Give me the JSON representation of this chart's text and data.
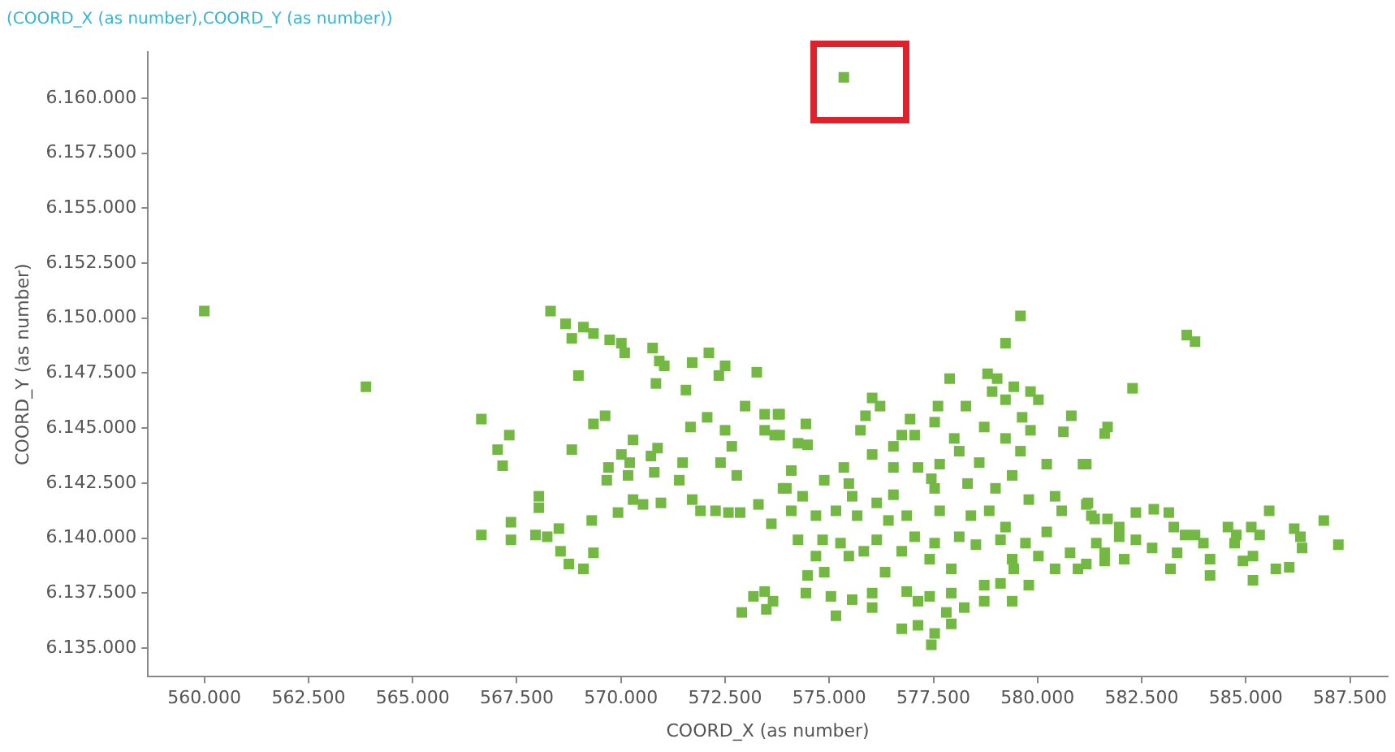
{
  "chart_data": {
    "type": "scatter",
    "title": "(COORD_X (as number),COORD_Y (as number))",
    "xlabel": "COORD_X (as number)",
    "ylabel": "COORD_Y (as number)",
    "marker": "square",
    "grid": false,
    "legend": false,
    "xlim": [
      558650,
      588400
    ],
    "ylim": [
      6133700,
      6162100
    ],
    "xticks": [
      {
        "value": 560000,
        "label": "560.000"
      },
      {
        "value": 562500,
        "label": "562.500"
      },
      {
        "value": 565000,
        "label": "565.000"
      },
      {
        "value": 567500,
        "label": "567.500"
      },
      {
        "value": 570000,
        "label": "570.000"
      },
      {
        "value": 572500,
        "label": "572.500"
      },
      {
        "value": 575000,
        "label": "575.000"
      },
      {
        "value": 577500,
        "label": "577.500"
      },
      {
        "value": 580000,
        "label": "580.000"
      },
      {
        "value": 582500,
        "label": "582.500"
      },
      {
        "value": 585000,
        "label": "585.000"
      },
      {
        "value": 587500,
        "label": "587.500"
      }
    ],
    "yticks": [
      {
        "value": 6135000,
        "label": "6.135.000"
      },
      {
        "value": 6137500,
        "label": "6.137.500"
      },
      {
        "value": 6140000,
        "label": "6.140.000"
      },
      {
        "value": 6142500,
        "label": "6.142.500"
      },
      {
        "value": 6145000,
        "label": "6.145.000"
      },
      {
        "value": 6147500,
        "label": "6.147.500"
      },
      {
        "value": 6150000,
        "label": "6.150.000"
      },
      {
        "value": 6152500,
        "label": "6.152.500"
      },
      {
        "value": 6155000,
        "label": "6.155.000"
      },
      {
        "value": 6157500,
        "label": "6.157.500"
      },
      {
        "value": 6160000,
        "label": "6.160.000"
      }
    ],
    "series": [
      {
        "color": "#72b843",
        "x": [
          575350,
          560000,
          563880,
          568310,
          568670,
          568820,
          569100,
          569340,
          569730,
          570010,
          570090,
          570760,
          570920,
          571040,
          571710,
          572110,
          572500,
          572350,
          573260,
          568980,
          570840,
          571560,
          566650,
          567320,
          567040,
          567160,
          569340,
          569620,
          568820,
          570290,
          570010,
          570210,
          569700,
          569660,
          570170,
          570720,
          570880,
          570800,
          571480,
          571400,
          571670,
          572070,
          572500,
          572660,
          572390,
          572780,
          572980,
          573450,
          573450,
          573690,
          573770,
          568030,
          568030,
          567360,
          566650,
          567360,
          567950,
          568230,
          568510,
          568550,
          568750,
          569100,
          569300,
          569340,
          569930,
          570290,
          570530,
          570960,
          571710,
          571910,
          572270,
          572580,
          572860,
          573300,
          573610,
          573890,
          572900,
          573180,
          573450,
          573490,
          579590,
          579230,
          577890,
          578800,
          579030,
          578910,
          579430,
          579830,
          580020,
          579230,
          576030,
          576220,
          577610,
          578280,
          573810,
          574440,
          575870,
          576940,
          577530,
          575750,
          576740,
          577050,
          578720,
          579630,
          579830,
          580810,
          580620,
          573810,
          574250,
          574480,
          576030,
          576540,
          578000,
          578120,
          579230,
          579590,
          580220,
          581090,
          574090,
          574880,
          575350,
          576540,
          577130,
          577650,
          578600,
          577450,
          579390,
          573970,
          574360,
          575470,
          575550,
          576140,
          576540,
          577530,
          578320,
          578990,
          579790,
          580420,
          581170,
          574090,
          574680,
          575160,
          575670,
          576420,
          576860,
          577650,
          578400,
          578840,
          579230,
          580580,
          581290,
          574250,
          574840,
          575270,
          576140,
          577050,
          577530,
          578120,
          578520,
          579110,
          579710,
          580220,
          574680,
          575470,
          575830,
          576740,
          577410,
          579390,
          580020,
          580780,
          574480,
          574880,
          576340,
          577930,
          579430,
          580420,
          580970,
          574440,
          575040,
          575550,
          576030,
          576860,
          577410,
          577930,
          578720,
          579110,
          579790,
          575160,
          576030,
          577130,
          577810,
          578240,
          578720,
          579390,
          576740,
          577130,
          577530,
          577450,
          577930,
          573650,
          583580,
          583780,
          582280,
          581680,
          581610,
          581170,
          581210,
          581370,
          581680,
          581960,
          582360,
          582790,
          583150,
          583270,
          583540,
          583780,
          583980,
          584570,
          584770,
          585130,
          585330,
          585560,
          586160,
          586310,
          586870,
          587220,
          581410,
          581960,
          582360,
          582750,
          581610,
          582080,
          583350,
          584140,
          584730,
          584930,
          585170,
          586350,
          586040,
          585720,
          581610,
          583190,
          584140,
          585170,
          581170
        ],
        "values": [
          6160950,
          6150320,
          6146880,
          6150320,
          6149740,
          6149080,
          6149590,
          6149300,
          6149010,
          6148860,
          6148420,
          6148640,
          6148050,
          6147830,
          6147980,
          6148420,
          6147830,
          6147390,
          6147540,
          6147390,
          6147030,
          6146730,
          6145410,
          6144680,
          6144020,
          6143290,
          6145190,
          6145560,
          6144020,
          6144460,
          6143800,
          6143430,
          6143210,
          6142630,
          6142850,
          6143730,
          6144090,
          6142990,
          6143430,
          6142630,
          6145050,
          6145490,
          6144900,
          6144170,
          6143430,
          6142850,
          6146000,
          6145630,
          6144900,
          6144680,
          6145630,
          6141900,
          6141380,
          6140720,
          6140140,
          6139920,
          6140140,
          6140060,
          6140430,
          6139400,
          6138820,
          6138600,
          6140800,
          6139330,
          6141160,
          6141750,
          6141530,
          6141600,
          6141750,
          6141240,
          6141240,
          6141160,
          6141160,
          6141530,
          6140650,
          6142260,
          6136620,
          6137350,
          6137570,
          6136760,
          6150100,
          6148860,
          6147250,
          6147470,
          6147250,
          6146660,
          6146880,
          6146660,
          6146290,
          6146290,
          6146370,
          6146000,
          6146000,
          6146000,
          6145630,
          6145190,
          6145560,
          6145410,
          6145270,
          6144900,
          6144680,
          6144680,
          6145050,
          6145490,
          6144900,
          6145560,
          6144830,
          6144680,
          6144310,
          6144240,
          6143800,
          6144170,
          6144530,
          6143950,
          6144530,
          6143950,
          6143360,
          6143360,
          6143070,
          6142630,
          6143210,
          6143210,
          6143210,
          6143360,
          6143430,
          6142700,
          6142850,
          6142260,
          6141900,
          6142480,
          6141900,
          6141600,
          6141970,
          6142260,
          6142480,
          6142260,
          6141750,
          6141900,
          6141530,
          6141240,
          6141020,
          6141240,
          6141020,
          6140800,
          6141020,
          6141240,
          6141020,
          6141240,
          6140500,
          6141240,
          6141020,
          6139920,
          6139920,
          6139770,
          6139920,
          6140060,
          6139770,
          6140060,
          6139700,
          6139920,
          6139770,
          6140280,
          6139180,
          6139180,
          6139400,
          6139400,
          6139040,
          6139040,
          6139180,
          6139330,
          6138300,
          6138450,
          6138450,
          6138600,
          6138600,
          6138600,
          6138600,
          6137500,
          6137350,
          6137200,
          6137500,
          6137570,
          6137350,
          6137500,
          6137860,
          6137940,
          6137860,
          6136470,
          6136840,
          6137130,
          6136620,
          6136840,
          6137130,
          6137130,
          6135880,
          6136030,
          6135660,
          6135150,
          6136100,
          6137130,
          6149230,
          6148930,
          6146810,
          6145050,
          6144750,
          6143360,
          6141600,
          6140870,
          6140870,
          6140500,
          6141160,
          6141310,
          6141160,
          6140500,
          6140140,
          6140140,
          6139770,
          6140500,
          6140140,
          6140500,
          6140140,
          6141240,
          6140430,
          6140060,
          6140800,
          6139700,
          6139770,
          6140060,
          6139920,
          6139550,
          6139330,
          6139040,
          6139330,
          6139040,
          6139770,
          6138960,
          6139180,
          6139550,
          6138670,
          6138600,
          6138960,
          6138600,
          6138300,
          6138080,
          6138820
        ]
      }
    ]
  }
}
